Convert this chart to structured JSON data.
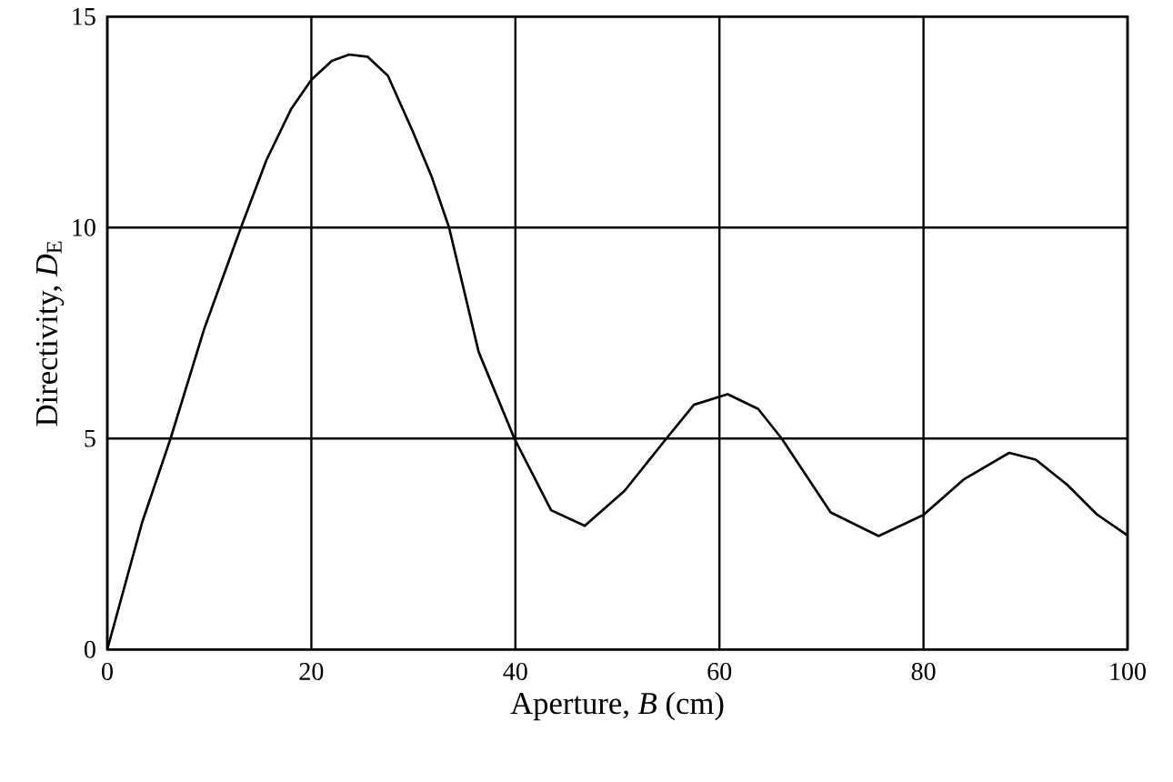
{
  "chart_data": {
    "type": "line",
    "xlabel": "Aperture, *B* (cm)",
    "ylabel": "Directivity, *D*$_{E}$",
    "series": [
      {
        "color": "#000000",
        "x": [
          0,
          3.4,
          6.2,
          9.5,
          13.1,
          15.6,
          18,
          20,
          22,
          23.7,
          25.5,
          27.5,
          29.9,
          31.8,
          33.5,
          36.4,
          39.9,
          43.5,
          46.8,
          50.7,
          54.8,
          57.5,
          60.8,
          63.8,
          66.1,
          70.9,
          75.6,
          80,
          84,
          88.4,
          91,
          94.1,
          97,
          100
        ],
        "values": [
          0,
          3,
          5,
          7.6,
          10,
          11.6,
          12.8,
          13.5,
          13.95,
          14.1,
          14.05,
          13.6,
          12.3,
          11.2,
          10,
          7.05,
          5,
          3.3,
          2.93,
          3.76,
          5,
          5.8,
          6.05,
          5.7,
          5,
          3.25,
          2.69,
          3.19,
          4.04,
          4.66,
          4.5,
          3.9,
          3.2,
          2.7
        ]
      }
    ],
    "xlim": [
      0,
      100
    ],
    "ylim": [
      0,
      15
    ],
    "xticks": [
      0,
      20,
      40,
      60,
      80,
      100
    ],
    "yticks": [
      0,
      5,
      10,
      15
    ],
    "grid": true,
    "marker": "none",
    "line_style": "solid"
  }
}
